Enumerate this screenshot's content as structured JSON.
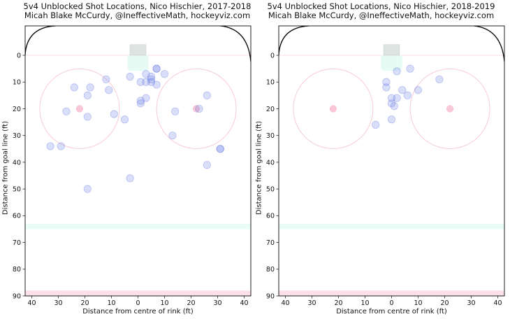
{
  "chart_data": [
    {
      "type": "scatter",
      "title": "5v4 Unblocked Shot Locations, Nico Hischier, 2017-2018",
      "subtitle": "Micah Blake McCurdy, @IneffectiveMath, hockeyviz.com",
      "xlabel": "Distance from centre of rink (ft)",
      "ylabel": "Distance from goal line (ft)",
      "xlim": [
        -42.5,
        42.5
      ],
      "ylim": [
        -11,
        90
      ],
      "y_inverted": true,
      "x_axis_reversed_labels": true,
      "xticks": [
        -40,
        -30,
        -20,
        -10,
        0,
        10,
        20,
        30,
        40
      ],
      "xtick_labels": [
        "40",
        "30",
        "20",
        "10",
        "0",
        "10",
        "20",
        "30",
        "40"
      ],
      "yticks": [
        0,
        10,
        20,
        30,
        40,
        50,
        60,
        70,
        80,
        90
      ],
      "ytick_labels": [
        "0",
        "10",
        "20",
        "30",
        "40",
        "50",
        "60",
        "70",
        "80",
        "90"
      ],
      "grid": false,
      "series": [
        {
          "name": "Unblocked shots",
          "color": "#6478e6",
          "points": [
            {
              "x": -24,
              "y": 12
            },
            {
              "x": -18,
              "y": 12
            },
            {
              "x": -19,
              "y": 15
            },
            {
              "x": -12,
              "y": 9
            },
            {
              "x": -11,
              "y": 13
            },
            {
              "x": -27,
              "y": 21
            },
            {
              "x": -19,
              "y": 23
            },
            {
              "x": -9,
              "y": 22
            },
            {
              "x": -5,
              "y": 24
            },
            {
              "x": 7,
              "y": 5
            },
            {
              "x": 7,
              "y": 5
            },
            {
              "x": -3,
              "y": 8
            },
            {
              "x": 3,
              "y": 7
            },
            {
              "x": 5,
              "y": 8
            },
            {
              "x": 5,
              "y": 9
            },
            {
              "x": 5,
              "y": 10
            },
            {
              "x": 10,
              "y": 7
            },
            {
              "x": 1,
              "y": 10
            },
            {
              "x": 3,
              "y": 10
            },
            {
              "x": 7,
              "y": 11
            },
            {
              "x": 3,
              "y": 16
            },
            {
              "x": 1,
              "y": 17
            },
            {
              "x": 1,
              "y": 18
            },
            {
              "x": 14,
              "y": 21
            },
            {
              "x": 26,
              "y": 15
            },
            {
              "x": 23,
              "y": 20
            },
            {
              "x": 13,
              "y": 30
            },
            {
              "x": 31,
              "y": 35
            },
            {
              "x": 31,
              "y": 35
            },
            {
              "x": 26,
              "y": 41
            },
            {
              "x": -33,
              "y": 34
            },
            {
              "x": -29,
              "y": 34
            },
            {
              "x": -3,
              "y": 46
            },
            {
              "x": -19,
              "y": 50
            }
          ]
        }
      ],
      "rink": {
        "boards_color": "#000000",
        "goal_line_y": 0,
        "goal_line_color": "#fbe3ea",
        "net_color": "#dde3e0",
        "crease_color": "#e6fbf4",
        "faceoff_circles": [
          {
            "x": -22,
            "y": 20,
            "r": 15
          },
          {
            "x": 22,
            "y": 20,
            "r": 15
          }
        ],
        "faceoff_color": "#f6c6d4",
        "faceoff_dot_color": "#f9c8d8",
        "blue_line": [
          63,
          65
        ],
        "blue_line_color": "#e8fdf6",
        "red_line": [
          88,
          90
        ],
        "red_line_color": "#fbdfe9"
      }
    },
    {
      "type": "scatter",
      "title": "5v4 Unblocked Shot Locations, Nico Hischier, 2018-2019",
      "subtitle": "Micah Blake McCurdy, @IneffectiveMath, hockeyviz.com",
      "xlabel": "Distance from centre of rink (ft)",
      "ylabel": "Distance from goal line (ft)",
      "xlim": [
        -42.5,
        42.5
      ],
      "ylim": [
        -11,
        90
      ],
      "y_inverted": true,
      "x_axis_reversed_labels": true,
      "xticks": [
        -40,
        -30,
        -20,
        -10,
        0,
        10,
        20,
        30,
        40
      ],
      "xtick_labels": [
        "40",
        "30",
        "20",
        "10",
        "0",
        "10",
        "20",
        "30",
        "40"
      ],
      "yticks": [
        0,
        10,
        20,
        30,
        40,
        50,
        60,
        70,
        80,
        90
      ],
      "ytick_labels": [
        "0",
        "10",
        "20",
        "30",
        "40",
        "50",
        "60",
        "70",
        "80",
        "90"
      ],
      "grid": false,
      "series": [
        {
          "name": "Unblocked shots",
          "color": "#6478e6",
          "points": [
            {
              "x": 2,
              "y": 6
            },
            {
              "x": 7,
              "y": 5
            },
            {
              "x": 18,
              "y": 9
            },
            {
              "x": -2,
              "y": 10
            },
            {
              "x": -2,
              "y": 12
            },
            {
              "x": 4,
              "y": 13
            },
            {
              "x": 10,
              "y": 13
            },
            {
              "x": 6,
              "y": 15
            },
            {
              "x": 0,
              "y": 16
            },
            {
              "x": 2,
              "y": 16
            },
            {
              "x": 0,
              "y": 18
            },
            {
              "x": 1,
              "y": 19
            },
            {
              "x": 0,
              "y": 24
            },
            {
              "x": -6,
              "y": 26
            }
          ]
        }
      ],
      "rink": {
        "boards_color": "#000000",
        "goal_line_y": 0,
        "goal_line_color": "#fbe3ea",
        "net_color": "#dde3e0",
        "crease_color": "#e6fbf4",
        "faceoff_circles": [
          {
            "x": -22,
            "y": 20,
            "r": 15
          },
          {
            "x": 22,
            "y": 20,
            "r": 15
          }
        ],
        "faceoff_color": "#f6c6d4",
        "faceoff_dot_color": "#f9c8d8",
        "blue_line": [
          63,
          65
        ],
        "blue_line_color": "#e8fdf6",
        "red_line": [
          88,
          90
        ],
        "red_line_color": "#fbdfe9"
      }
    }
  ]
}
